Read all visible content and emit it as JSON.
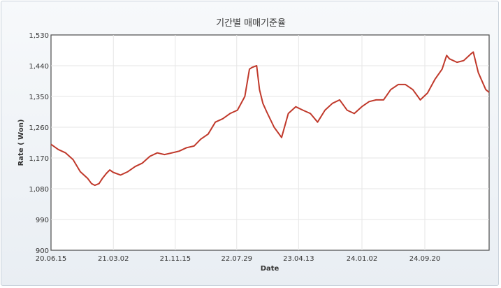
{
  "chart_data": {
    "type": "line",
    "title": "기간별 매매기준율",
    "xlabel": "Date",
    "ylabel": "Rate ( Won)",
    "ylim": [
      900,
      1530
    ],
    "yticks": [
      900,
      990,
      1080,
      1170,
      1260,
      1350,
      1440,
      1530
    ],
    "ytick_labels": [
      "900",
      "990",
      "1,080",
      "1,170",
      "1,260",
      "1,350",
      "1,440",
      "1,530"
    ],
    "xticks": [
      "20.06.15",
      "21.03.02",
      "21.11.15",
      "22.07.29",
      "23.04.13",
      "24.01.02",
      "24.09.20"
    ],
    "xlim": [
      "2020-06-15",
      "2025-06-15"
    ],
    "grid": true,
    "line_color": "#c0392b",
    "series": [
      {
        "name": "",
        "x": [
          "2020-06-15",
          "2020-07-15",
          "2020-08-15",
          "2020-09-15",
          "2020-10-15",
          "2020-11-15",
          "2020-12-01",
          "2020-12-15",
          "2021-01-01",
          "2021-01-15",
          "2021-02-01",
          "2021-02-15",
          "2021-03-01",
          "2021-04-01",
          "2021-05-01",
          "2021-06-01",
          "2021-07-01",
          "2021-08-01",
          "2021-09-01",
          "2021-10-01",
          "2021-11-01",
          "2021-12-01",
          "2022-01-01",
          "2022-02-01",
          "2022-03-01",
          "2022-04-01",
          "2022-05-01",
          "2022-06-01",
          "2022-07-01",
          "2022-08-01",
          "2022-09-01",
          "2022-09-20",
          "2022-10-01",
          "2022-10-20",
          "2022-11-01",
          "2022-11-15",
          "2022-12-01",
          "2023-01-01",
          "2023-02-01",
          "2023-03-01",
          "2023-04-01",
          "2023-05-01",
          "2023-06-01",
          "2023-07-01",
          "2023-08-01",
          "2023-09-01",
          "2023-10-01",
          "2023-11-01",
          "2023-12-01",
          "2024-01-01",
          "2024-02-01",
          "2024-03-01",
          "2024-04-01",
          "2024-05-01",
          "2024-06-01",
          "2024-07-01",
          "2024-08-01",
          "2024-09-01",
          "2024-10-01",
          "2024-11-01",
          "2024-12-01",
          "2024-12-20",
          "2025-01-01",
          "2025-02-01",
          "2025-03-01",
          "2025-04-01",
          "2025-04-10",
          "2025-05-01",
          "2025-06-01",
          "2025-06-15"
        ],
        "values": [
          1210,
          1195,
          1185,
          1165,
          1130,
          1110,
          1095,
          1090,
          1095,
          1110,
          1125,
          1135,
          1128,
          1120,
          1130,
          1145,
          1155,
          1175,
          1185,
          1180,
          1185,
          1190,
          1200,
          1205,
          1225,
          1240,
          1275,
          1285,
          1300,
          1310,
          1350,
          1430,
          1435,
          1440,
          1370,
          1330,
          1305,
          1260,
          1230,
          1300,
          1320,
          1310,
          1300,
          1275,
          1310,
          1330,
          1340,
          1310,
          1300,
          1320,
          1335,
          1340,
          1340,
          1370,
          1385,
          1385,
          1370,
          1340,
          1360,
          1400,
          1430,
          1470,
          1460,
          1450,
          1455,
          1475,
          1480,
          1420,
          1370,
          1362
        ]
      }
    ]
  }
}
